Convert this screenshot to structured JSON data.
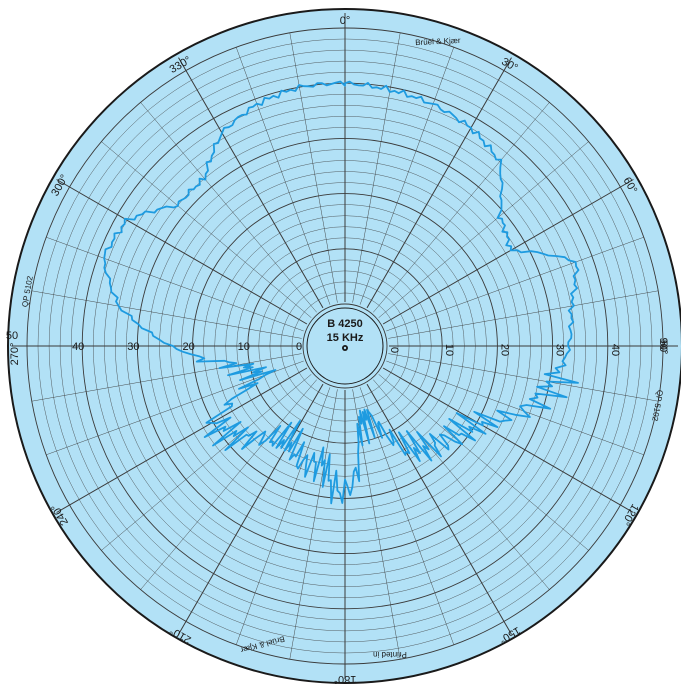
{
  "chart_data": {
    "type": "polar-line",
    "title": "B 4250",
    "subtitle": "15 KHz",
    "brand": "Brüel & Kjær",
    "sheet_code": "QP 5102",
    "tiny_print": "Printed in",
    "angle_labels": [
      "0°",
      "30°",
      "60°",
      "90°",
      "120°",
      "150°",
      "180°",
      "210°",
      "240°",
      "270°",
      "300°",
      "330°"
    ],
    "radial_labels": [
      "0",
      "10",
      "20",
      "30",
      "40",
      "50"
    ],
    "radial_range": [
      0,
      50
    ],
    "grid": true,
    "colors": {
      "paper": "#b2e1f6",
      "grid": "#3a3a3a",
      "trace": "#1e9be0"
    },
    "series": [
      {
        "angle_deg": [
          0,
          10,
          20,
          30,
          40,
          50,
          60,
          70,
          80,
          90,
          100,
          110,
          120,
          130,
          140,
          150,
          160,
          170,
          175,
          180,
          185,
          190,
          200,
          210,
          220,
          230,
          240,
          250,
          260,
          270,
          280,
          290,
          300,
          310,
          320,
          330,
          340,
          350
        ],
        "radius_db": [
          40,
          39.5,
          39,
          38,
          36,
          29,
          27,
          37,
          34,
          33,
          31,
          27,
          20,
          18,
          16,
          14,
          6,
          7,
          16,
          19,
          18,
          14,
          15,
          12,
          14,
          18,
          20,
          8,
          12,
          24,
          34,
          39,
          38,
          32,
          32,
          37,
          39,
          40
        ]
      }
    ]
  }
}
